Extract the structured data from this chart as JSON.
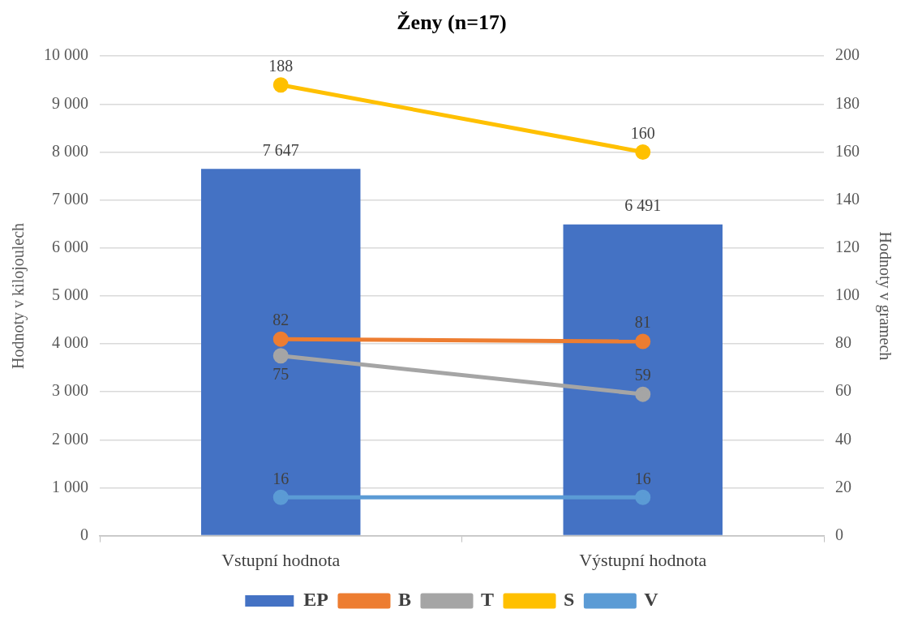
{
  "chart_data": {
    "type": "bar",
    "title": "Ženy (n=17)",
    "categories": [
      "Vstupní hodnota",
      "Výstupní hodnota"
    ],
    "series": [
      {
        "name": "EP",
        "color": "#4472c4",
        "values": [
          7647,
          6491
        ],
        "value_labels": [
          "7 647",
          "6 491"
        ]
      },
      {
        "name": "B",
        "type": "line",
        "axis": "y2",
        "color": "#ed7d31",
        "values": [
          82,
          81
        ]
      },
      {
        "name": "T",
        "type": "line",
        "axis": "y2",
        "color": "#a5a5a5",
        "values": [
          75,
          59
        ]
      },
      {
        "name": "S",
        "type": "line",
        "axis": "y2",
        "color": "#ffc000",
        "values": [
          188,
          160
        ]
      },
      {
        "name": "V",
        "type": "line",
        "axis": "y2",
        "color": "#5b9bd5",
        "values": [
          16,
          16
        ]
      }
    ],
    "ylabel": "Hodnoty v kilojoulech",
    "y2label": "Hodnoty v gramech",
    "ylim": [
      0,
      10000
    ],
    "yticks": [
      0,
      {
        "value": 1000,
        "label": "1 000"
      },
      {
        "value": 2000,
        "label": "2 000"
      },
      {
        "value": 3000,
        "label": "3 000"
      },
      {
        "value": 4000,
        "label": "4 000"
      },
      {
        "value": 5000,
        "label": "5 000"
      },
      {
        "value": 6000,
        "label": "6 000"
      },
      {
        "value": 7000,
        "label": "7 000"
      },
      {
        "value": 8000,
        "label": "8 000"
      },
      {
        "value": 9000,
        "label": "9 000"
      },
      {
        "value": 10000,
        "label": "10 000"
      }
    ],
    "y2lim": [
      0,
      200
    ],
    "y2ticks": [
      0,
      20,
      40,
      60,
      80,
      100,
      120,
      140,
      160,
      180,
      200
    ],
    "data_labels": true,
    "grid": "y",
    "legend": "bottom",
    "marker": "circle"
  }
}
